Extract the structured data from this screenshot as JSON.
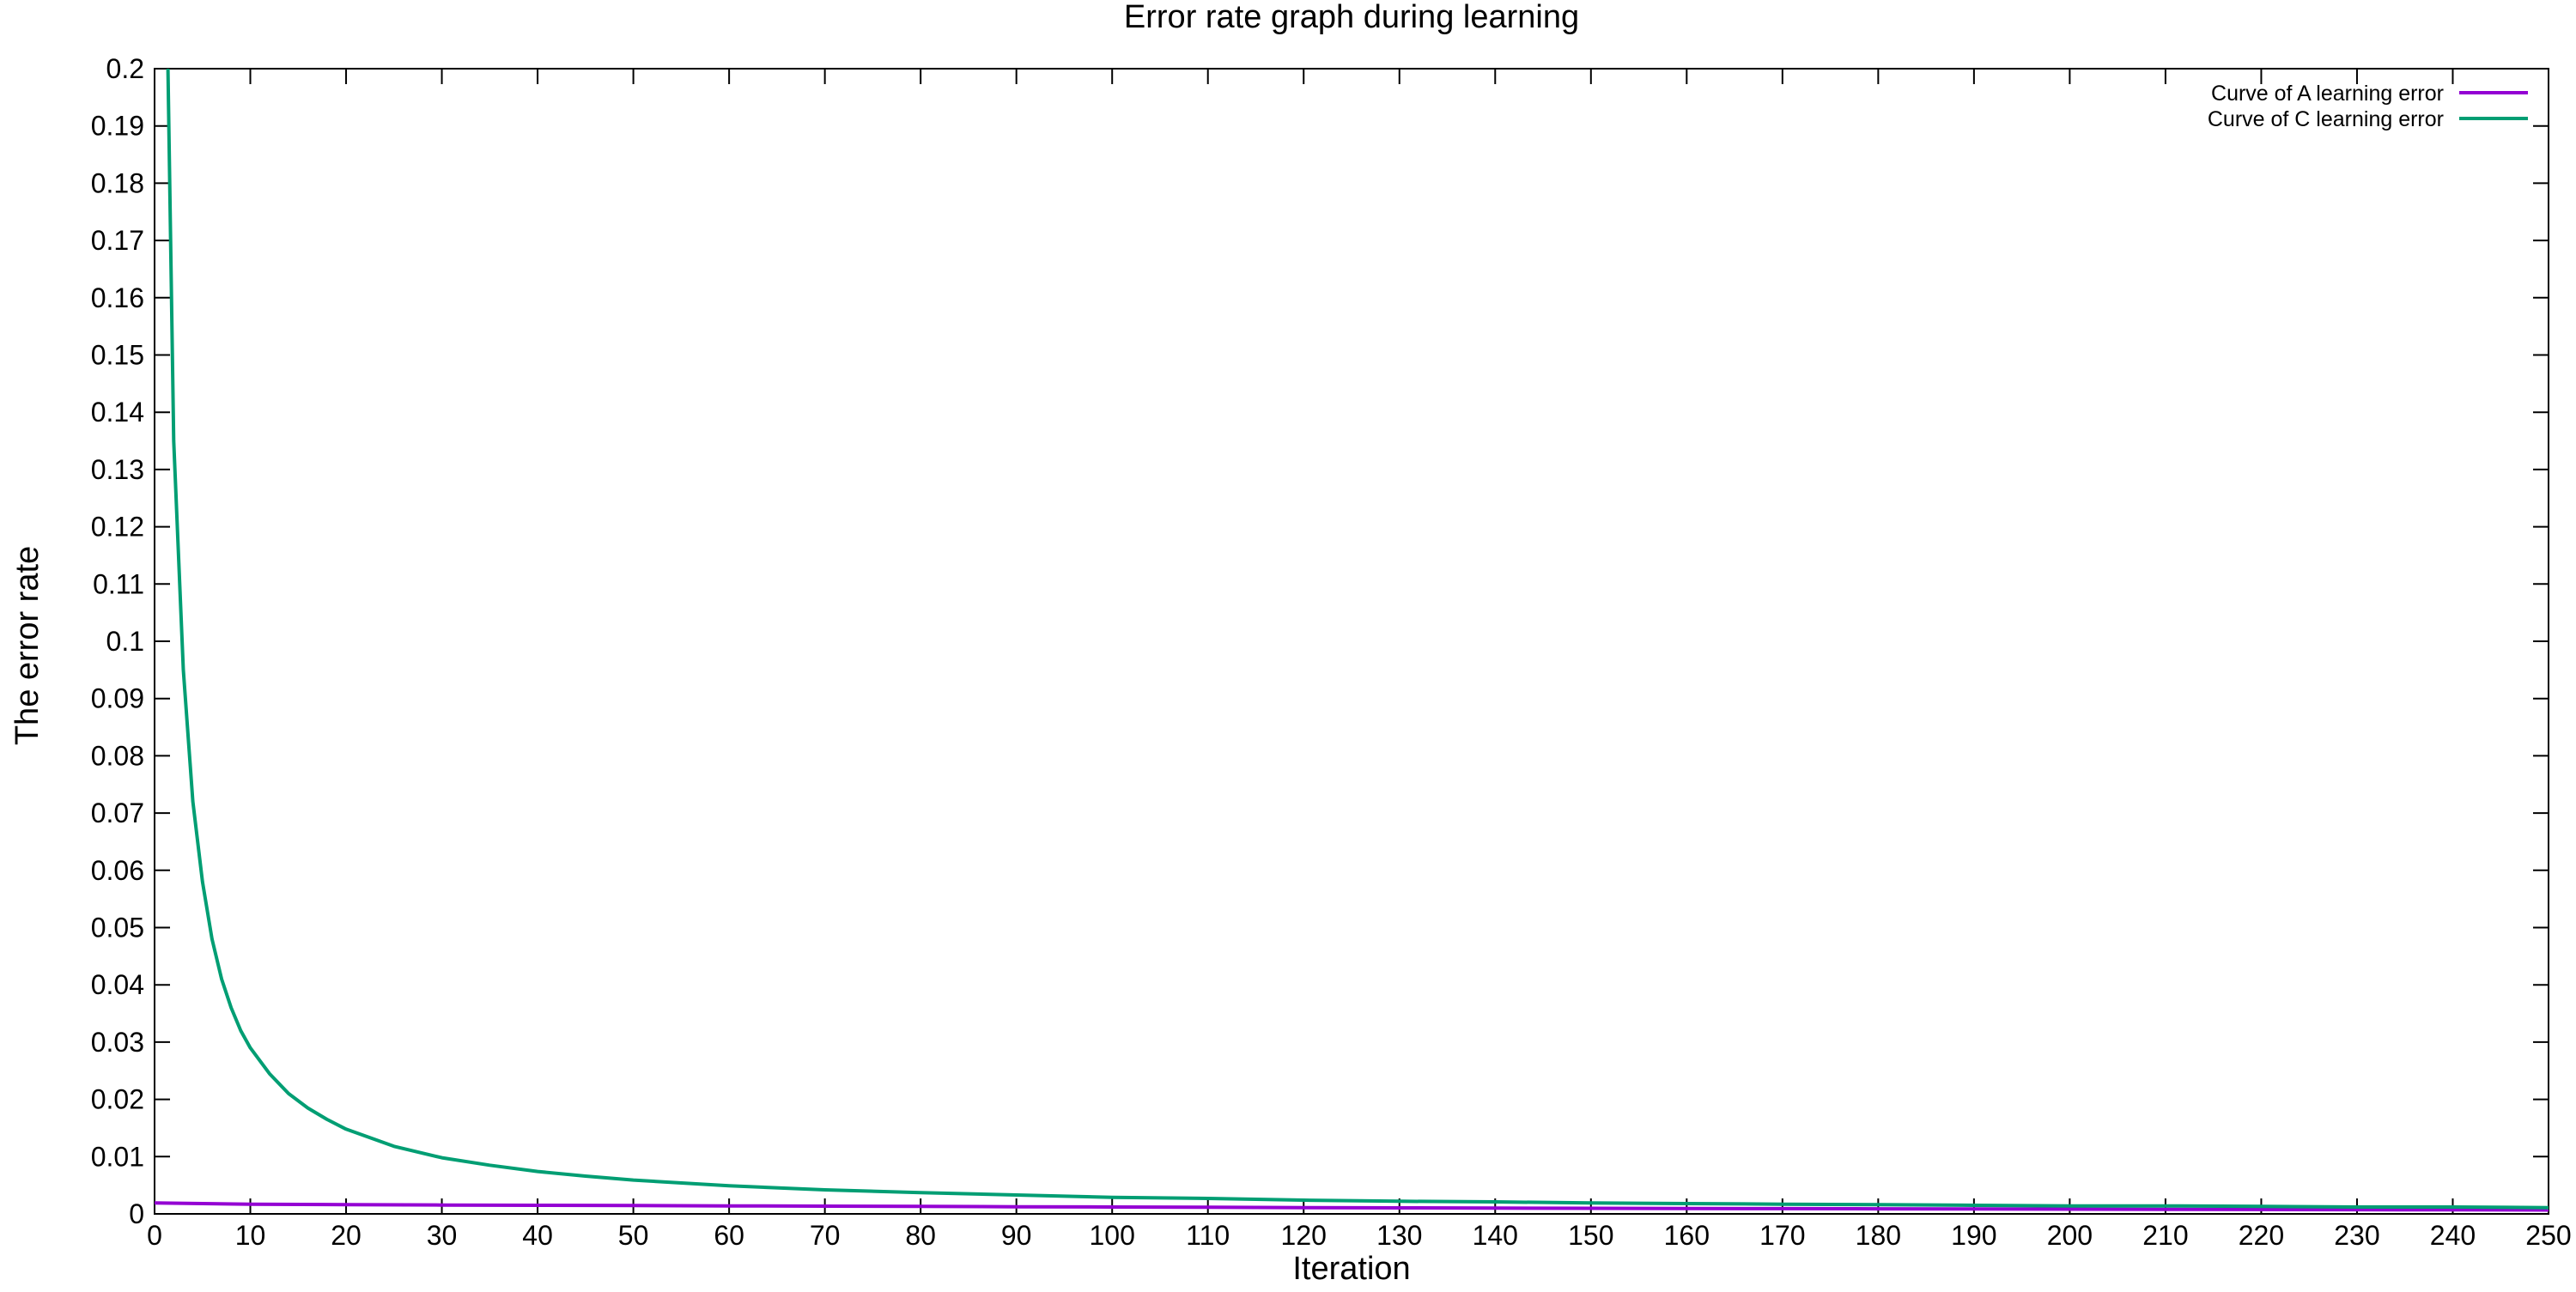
{
  "chart_data": {
    "type": "line",
    "title": "Error rate graph during learning",
    "xlabel": "Iteration",
    "ylabel": "The error rate",
    "xlim": [
      0,
      250
    ],
    "ylim": [
      0,
      0.2
    ],
    "xticks": [
      0,
      10,
      20,
      30,
      40,
      50,
      60,
      70,
      80,
      90,
      100,
      110,
      120,
      130,
      140,
      150,
      160,
      170,
      180,
      190,
      200,
      210,
      220,
      230,
      240,
      250
    ],
    "yticks": [
      0,
      0.01,
      0.02,
      0.03,
      0.04,
      0.05,
      0.06,
      0.07,
      0.08,
      0.09,
      0.1,
      0.11,
      0.12,
      0.13,
      0.14,
      0.15,
      0.16,
      0.17,
      0.18,
      0.19,
      0.2
    ],
    "grid": false,
    "legend_position": "top-right",
    "series": [
      {
        "name": "Curve of A learning error",
        "color": "#9400d3",
        "x": [
          0,
          5,
          10,
          20,
          30,
          40,
          50,
          60,
          70,
          80,
          90,
          100,
          110,
          120,
          130,
          140,
          150,
          160,
          170,
          180,
          190,
          200,
          210,
          220,
          230,
          240,
          250
        ],
        "y": [
          0.0019,
          0.0018,
          0.0017,
          0.0016,
          0.00155,
          0.0015,
          0.00145,
          0.0014,
          0.00135,
          0.0013,
          0.00125,
          0.0012,
          0.00115,
          0.0011,
          0.00105,
          0.001,
          0.00097,
          0.00094,
          0.00091,
          0.00088,
          0.00085,
          0.00082,
          0.00079,
          0.00076,
          0.00073,
          0.0007,
          0.00068
        ]
      },
      {
        "name": "Curve of C learning error",
        "color": "#009e73",
        "x": [
          1.4,
          2,
          3,
          4,
          5,
          6,
          7,
          8,
          9,
          10,
          12,
          14,
          16,
          18,
          20,
          25,
          30,
          35,
          40,
          45,
          50,
          60,
          70,
          80,
          90,
          100,
          110,
          120,
          130,
          140,
          150,
          160,
          170,
          180,
          190,
          200,
          210,
          220,
          230,
          240,
          250
        ],
        "y": [
          0.2,
          0.135,
          0.095,
          0.072,
          0.058,
          0.048,
          0.041,
          0.036,
          0.032,
          0.029,
          0.0245,
          0.021,
          0.0185,
          0.0165,
          0.0148,
          0.0118,
          0.0098,
          0.0085,
          0.0074,
          0.0066,
          0.0059,
          0.0049,
          0.0042,
          0.0037,
          0.0033,
          0.0029,
          0.0027,
          0.0024,
          0.0022,
          0.0021,
          0.0019,
          0.0018,
          0.0017,
          0.0016,
          0.0015,
          0.0014,
          0.0014,
          0.0013,
          0.0012,
          0.0012,
          0.0011
        ]
      }
    ]
  }
}
